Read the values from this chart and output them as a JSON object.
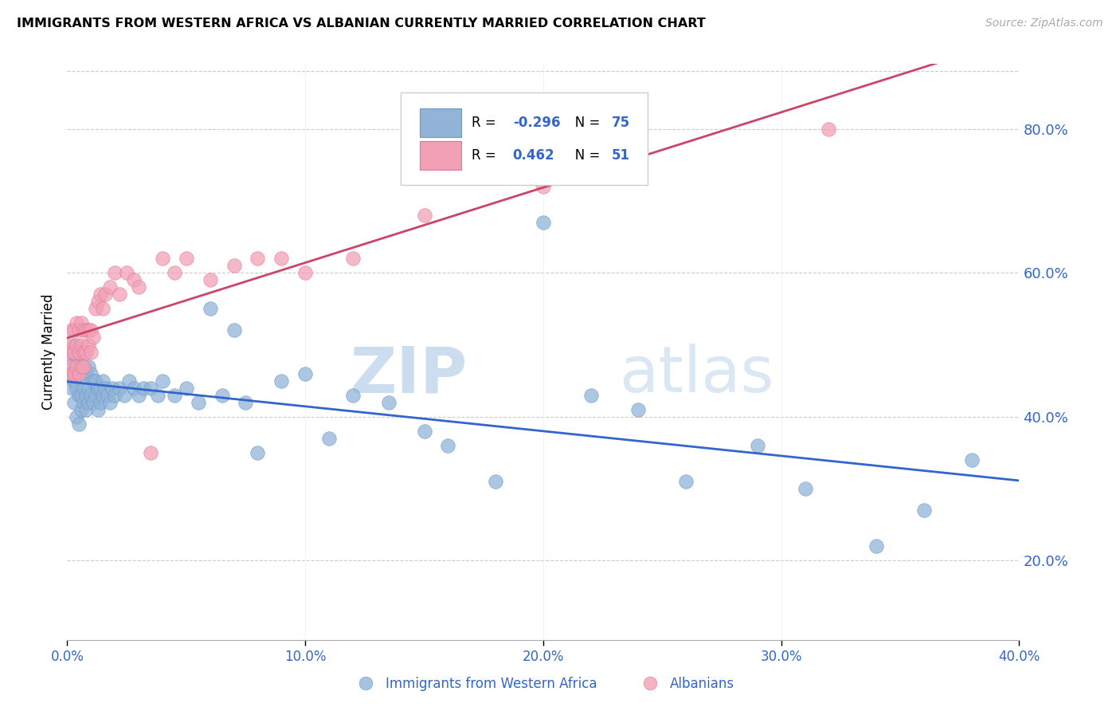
{
  "title": "IMMIGRANTS FROM WESTERN AFRICA VS ALBANIAN CURRENTLY MARRIED CORRELATION CHART",
  "source": "Source: ZipAtlas.com",
  "ylabel": "Currently Married",
  "xlim": [
    0.0,
    0.4
  ],
  "ylim": [
    0.09,
    0.89
  ],
  "blue_color": "#92b4d8",
  "pink_color": "#f2a0b5",
  "blue_line_color": "#3366cc",
  "pink_line_color": "#cc4466",
  "legend_r_blue": "-0.296",
  "legend_n_blue": "75",
  "legend_r_pink": "0.462",
  "legend_n_pink": "51",
  "watermark_zip": "ZIP",
  "watermark_atlas": "atlas",
  "blue_label": "Immigrants from Western Africa",
  "pink_label": "Albanians",
  "blue_x": [
    0.001,
    0.002,
    0.002,
    0.003,
    0.003,
    0.003,
    0.004,
    0.004,
    0.004,
    0.005,
    0.005,
    0.005,
    0.006,
    0.006,
    0.006,
    0.007,
    0.007,
    0.007,
    0.008,
    0.008,
    0.008,
    0.009,
    0.009,
    0.009,
    0.01,
    0.01,
    0.011,
    0.011,
    0.012,
    0.012,
    0.013,
    0.013,
    0.014,
    0.014,
    0.015,
    0.015,
    0.016,
    0.017,
    0.018,
    0.019,
    0.02,
    0.022,
    0.024,
    0.026,
    0.028,
    0.03,
    0.032,
    0.035,
    0.038,
    0.04,
    0.045,
    0.05,
    0.055,
    0.06,
    0.065,
    0.07,
    0.075,
    0.08,
    0.09,
    0.1,
    0.11,
    0.12,
    0.135,
    0.15,
    0.16,
    0.18,
    0.2,
    0.22,
    0.24,
    0.26,
    0.29,
    0.31,
    0.34,
    0.36,
    0.38
  ],
  "blue_y": [
    0.46,
    0.48,
    0.44,
    0.5,
    0.45,
    0.42,
    0.48,
    0.44,
    0.4,
    0.47,
    0.43,
    0.39,
    0.46,
    0.43,
    0.41,
    0.47,
    0.44,
    0.42,
    0.46,
    0.43,
    0.41,
    0.47,
    0.44,
    0.42,
    0.46,
    0.43,
    0.45,
    0.42,
    0.45,
    0.43,
    0.44,
    0.41,
    0.44,
    0.42,
    0.45,
    0.43,
    0.44,
    0.43,
    0.42,
    0.44,
    0.43,
    0.44,
    0.43,
    0.45,
    0.44,
    0.43,
    0.44,
    0.44,
    0.43,
    0.45,
    0.43,
    0.44,
    0.42,
    0.55,
    0.43,
    0.52,
    0.42,
    0.35,
    0.45,
    0.46,
    0.37,
    0.43,
    0.42,
    0.38,
    0.36,
    0.31,
    0.67,
    0.43,
    0.41,
    0.31,
    0.36,
    0.3,
    0.22,
    0.27,
    0.34
  ],
  "pink_x": [
    0.001,
    0.001,
    0.002,
    0.002,
    0.002,
    0.003,
    0.003,
    0.003,
    0.004,
    0.004,
    0.004,
    0.005,
    0.005,
    0.005,
    0.006,
    0.006,
    0.006,
    0.007,
    0.007,
    0.007,
    0.008,
    0.008,
    0.009,
    0.009,
    0.01,
    0.01,
    0.011,
    0.012,
    0.013,
    0.014,
    0.015,
    0.016,
    0.018,
    0.02,
    0.022,
    0.025,
    0.028,
    0.03,
    0.035,
    0.04,
    0.045,
    0.05,
    0.06,
    0.07,
    0.08,
    0.09,
    0.1,
    0.12,
    0.15,
    0.2,
    0.32
  ],
  "pink_y": [
    0.5,
    0.47,
    0.52,
    0.49,
    0.46,
    0.52,
    0.49,
    0.46,
    0.53,
    0.5,
    0.47,
    0.52,
    0.49,
    0.46,
    0.53,
    0.5,
    0.47,
    0.52,
    0.49,
    0.47,
    0.52,
    0.49,
    0.52,
    0.5,
    0.52,
    0.49,
    0.51,
    0.55,
    0.56,
    0.57,
    0.55,
    0.57,
    0.58,
    0.6,
    0.57,
    0.6,
    0.59,
    0.58,
    0.35,
    0.62,
    0.6,
    0.62,
    0.59,
    0.61,
    0.62,
    0.62,
    0.6,
    0.62,
    0.68,
    0.72,
    0.8
  ]
}
